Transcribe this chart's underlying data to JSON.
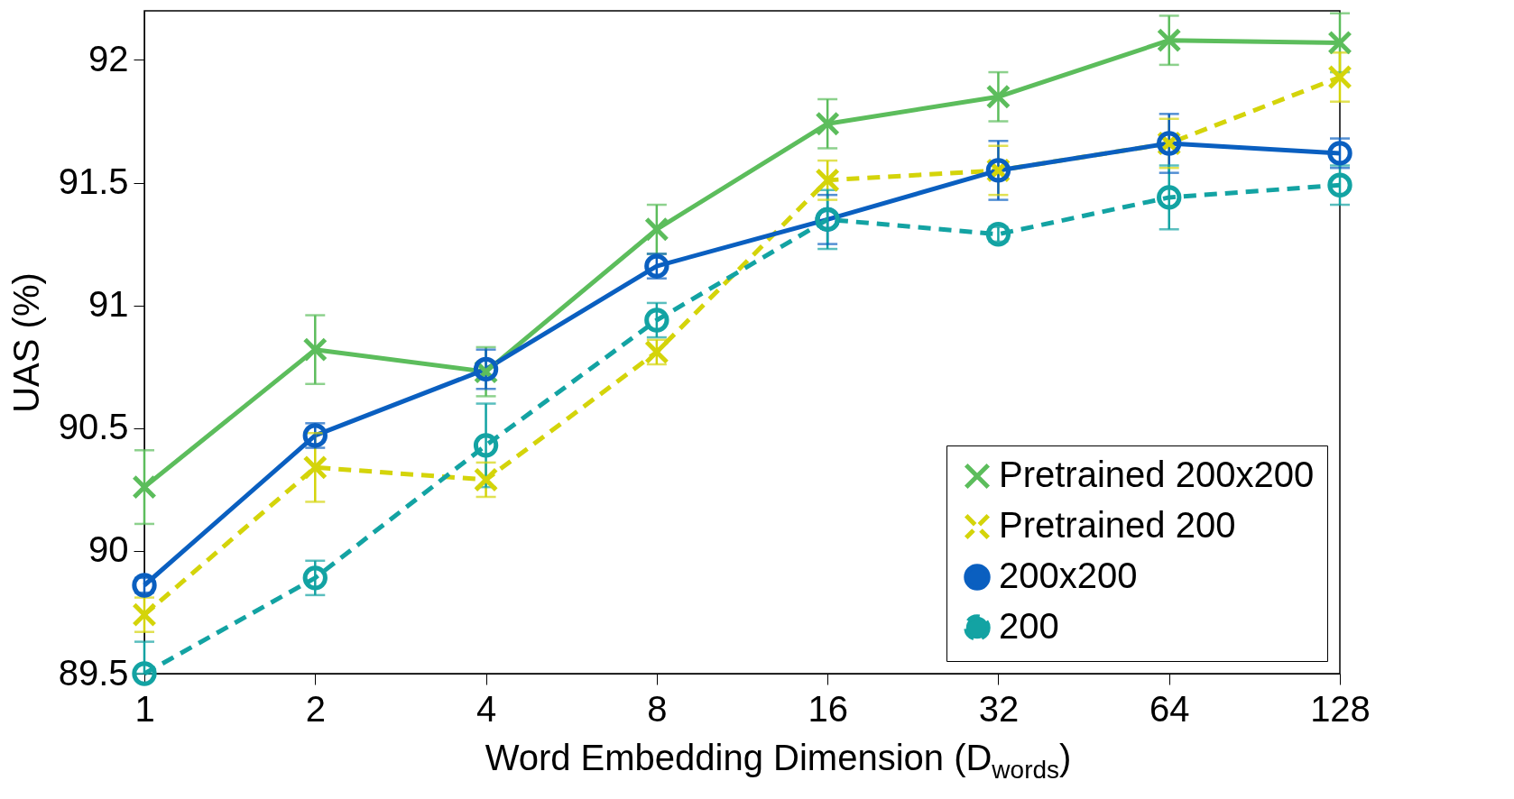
{
  "chart_data": {
    "type": "line",
    "xlabel": "Word Embedding Dimension (D$_{words}$)",
    "ylabel": "UAS (%)",
    "x": [
      1,
      2,
      4,
      8,
      16,
      32,
      64,
      128
    ],
    "log": "x",
    "xlim": [
      1,
      128
    ],
    "xticks": [
      1,
      2,
      4,
      8,
      16,
      32,
      64,
      128
    ],
    "ylim": [
      89.5,
      92.2
    ],
    "yticks": [
      89.5,
      90,
      90.5,
      91,
      91.5,
      92
    ],
    "grid": false,
    "legend": "bottom right",
    "series": [
      {
        "name": "Pretrained 200x200",
        "color": "#5cbd5c",
        "marker": "cross",
        "line_style": "solid",
        "values": [
          90.26,
          90.82,
          90.73,
          91.31,
          91.74,
          91.85,
          92.08,
          92.07
        ],
        "errors": [
          0.15,
          0.14,
          0.1,
          0.1,
          0.1,
          0.1,
          0.1,
          0.12
        ]
      },
      {
        "name": "Pretrained 200",
        "color": "#d4d40a",
        "marker": "cross",
        "line_style": "dashed",
        "values": [
          89.74,
          90.34,
          90.29,
          90.81,
          91.51,
          91.55,
          91.66,
          91.93
        ],
        "errors": [
          0.07,
          0.14,
          0.07,
          0.05,
          0.08,
          0.1,
          0.1,
          0.1
        ]
      },
      {
        "name": "200x200",
        "color": "#0a5fc0",
        "marker": "circle",
        "line_style": "solid",
        "values": [
          89.86,
          90.47,
          90.74,
          91.16,
          91.35,
          91.55,
          91.66,
          91.62
        ],
        "errors": [
          0.03,
          0.05,
          0.08,
          0.05,
          0.1,
          0.12,
          0.12,
          0.06
        ]
      },
      {
        "name": "200",
        "color": "#13a3a3",
        "marker": "circle",
        "line_style": "dashed",
        "values": [
          89.5,
          89.89,
          90.43,
          90.94,
          91.35,
          91.29,
          91.44,
          91.49
        ],
        "errors": [
          [
            89.5,
            89.63
          ],
          0.07,
          0.17,
          0.07,
          0.12,
          0.03,
          0.13,
          0.08
        ]
      }
    ]
  }
}
